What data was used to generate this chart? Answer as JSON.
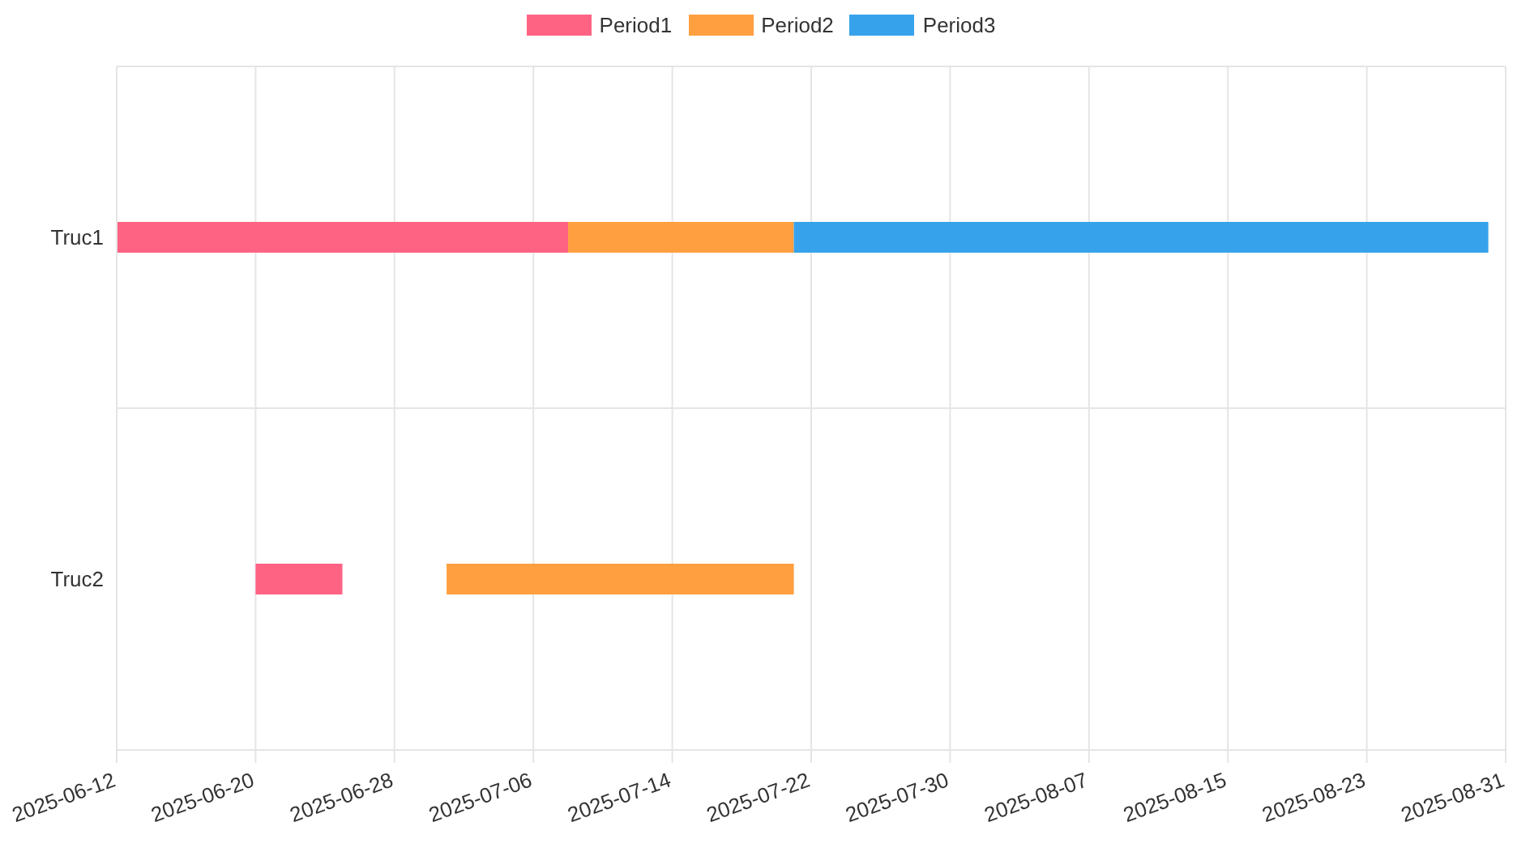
{
  "chart_data": {
    "type": "bar",
    "orientation": "horizontal",
    "categories": [
      "Truc1",
      "Truc2"
    ],
    "series": [
      {
        "name": "Period1",
        "color": "#ff6384",
        "base": [
          20251,
          20259
        ],
        "values": [
          26,
          5
        ]
      },
      {
        "name": "Period2",
        "color": "#ff9f40",
        "base": [
          20277,
          20270
        ],
        "values": [
          13,
          20
        ]
      },
      {
        "name": "Period3",
        "color": "#36a2eb",
        "base": [
          20290,
          null
        ],
        "values": [
          40,
          null
        ]
      }
    ],
    "xlim": [
      "2025-06-12",
      "2025-08-31"
    ],
    "xticks": [
      "2025-06-12",
      "2025-06-20",
      "2025-06-28",
      "2025-07-06",
      "2025-07-14",
      "2025-07-22",
      "2025-07-30",
      "2025-08-07",
      "2025-08-15",
      "2025-08-23",
      "2025-08-31"
    ],
    "grid": true,
    "legend": "top"
  }
}
